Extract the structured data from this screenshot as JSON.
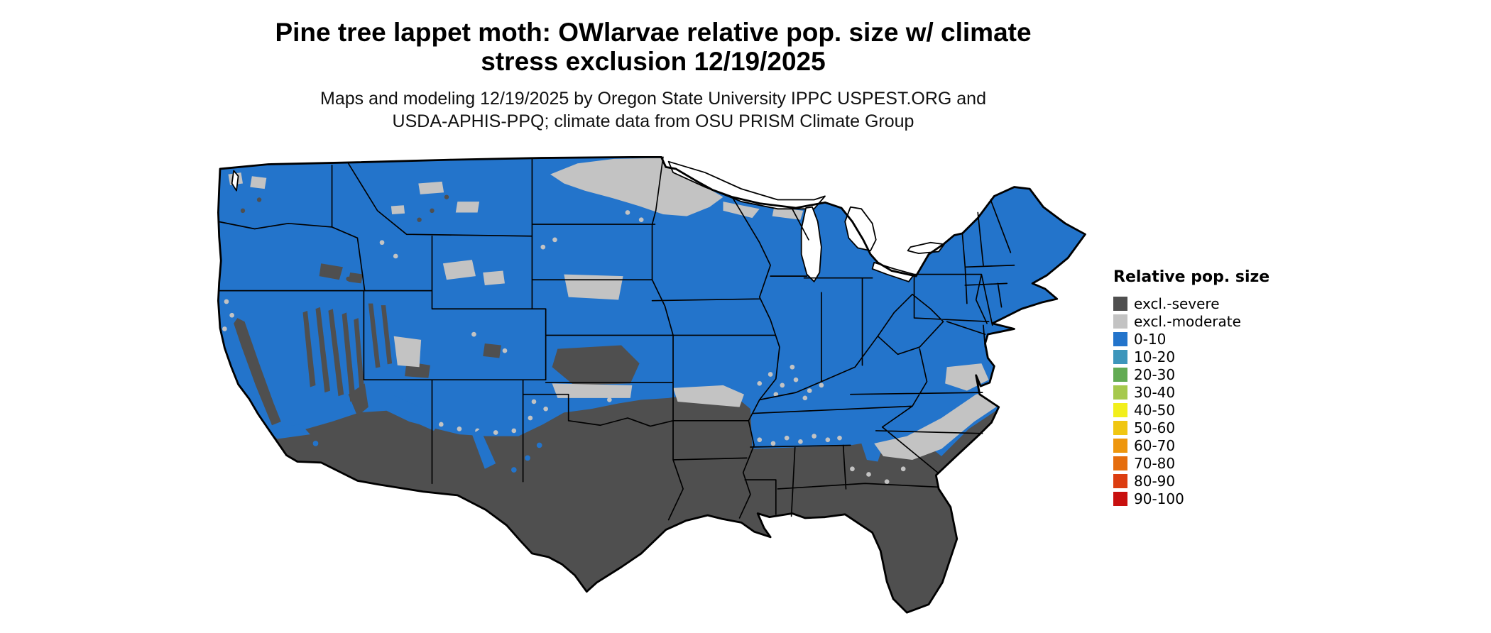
{
  "header": {
    "title_line1": "Pine tree lappet moth: OWlarvae relative pop. size w/ climate",
    "title_line2": "stress exclusion 12/19/2025",
    "subtitle_line1": "Maps and modeling 12/19/2025 by Oregon State University IPPC USPEST.ORG and",
    "subtitle_line2": "USDA-APHIS-PPQ; climate data from OSU PRISM Climate Group"
  },
  "legend": {
    "title": "Relative pop. size",
    "items": [
      {
        "key": "severe",
        "label": "excl.-severe",
        "color": "#4f4f4f"
      },
      {
        "key": "moderate",
        "label": "excl.-moderate",
        "color": "#c3c3c3"
      },
      {
        "key": "b0",
        "label": "0-10",
        "color": "#2374cb"
      },
      {
        "key": "b10",
        "label": "10-20",
        "color": "#3d96bb"
      },
      {
        "key": "b20",
        "label": "20-30",
        "color": "#62ab53"
      },
      {
        "key": "b30",
        "label": "30-40",
        "color": "#a6c94d"
      },
      {
        "key": "b40",
        "label": "40-50",
        "color": "#f2ef1c"
      },
      {
        "key": "b50",
        "label": "50-60",
        "color": "#f0c611"
      },
      {
        "key": "b60",
        "label": "60-70",
        "color": "#ee960d"
      },
      {
        "key": "b70",
        "label": "70-80",
        "color": "#e56d0d"
      },
      {
        "key": "b80",
        "label": "80-90",
        "color": "#dc3d10"
      },
      {
        "key": "b90",
        "label": "90-100",
        "color": "#c8100f"
      }
    ]
  },
  "map": {
    "region": "Contiguous United States",
    "classes_visible_on_map": [
      "excl.-severe",
      "excl.-moderate",
      "0-10"
    ]
  }
}
